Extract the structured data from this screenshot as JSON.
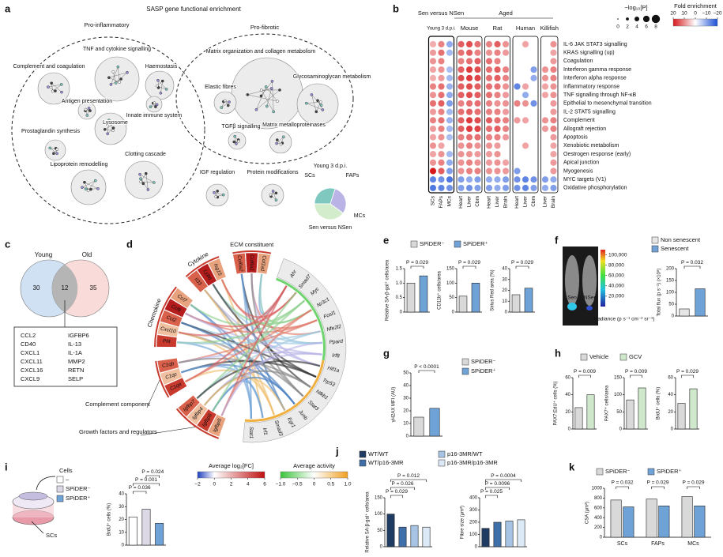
{
  "a": {
    "label": "a",
    "title": "SASP gene functional enrichment",
    "groups": [
      "Pro-inflammatory",
      "Pro-fibrotic"
    ],
    "nodes": [
      "TNF and cytokine signalling",
      "Complement and coagulation",
      "Haemostasis",
      "Antigen presentation",
      "Innate immune system",
      "Prostaglandin synthesis",
      "Lysosome",
      "Lipoprotein remodelling",
      "Clotting cascade",
      "Matrix organization and collagen metabolism",
      "Elastic fibres",
      "Glycosaminoglycan metabolism",
      "TGFβ signalling",
      "Matrix metalloproteinases",
      "IGF regulation",
      "Protein modifications"
    ],
    "pie": {
      "title": "Young 3 d.p.i.",
      "labels": [
        "SCs",
        "FAPs",
        "MCs"
      ],
      "values": [
        30,
        30,
        40
      ],
      "colors": [
        "#7fc8c0",
        "#b9b3e6",
        "#d3eccb"
      ],
      "caption": "Sen versus NSen"
    }
  },
  "b": {
    "label": "b",
    "header_sen": "Sen versus NSen",
    "header_aged": "Aged",
    "groups": [
      "Young 3 d.p.i.",
      "Mouse",
      "Rat",
      "Human",
      "Killifish"
    ],
    "columns": [
      "SCs",
      "FAPs",
      "MCs",
      "Heart",
      "Liver",
      "Cbm",
      "Heart",
      "Liver",
      "Brain",
      "Heart",
      "Liver",
      "Cbm",
      "Liver",
      "Brain"
    ],
    "rows": [
      "IL-6 JAK STAT3 signalling",
      "KRAS signalling (up)",
      "Coagulation",
      "Interferon gamma response",
      "Interferon alpha response",
      "Inflammatory response",
      "TNF signalling through NF-κB",
      "Epithelial to mesenchymal transition",
      "IL-2 STAT5 signalling",
      "Complement",
      "Allograft rejection",
      "Apoptosis",
      "Xenobiotic metabolism",
      "Oestrogen response (early)",
      "Apical junction",
      "Myogenesis",
      "MYC targets (V1)",
      "Oxidative phosphorylation"
    ],
    "fold": [
      [
        3,
        8,
        -6,
        12,
        14,
        10,
        8,
        12,
        6,
        null,
        4,
        null,
        null,
        6
      ],
      [
        5,
        10,
        -4,
        10,
        12,
        8,
        6,
        8,
        5,
        null,
        null,
        null,
        null,
        4
      ],
      [
        6,
        8,
        null,
        8,
        10,
        12,
        10,
        8,
        null,
        null,
        null,
        null,
        null,
        5
      ],
      [
        4,
        6,
        -3,
        12,
        16,
        14,
        10,
        12,
        8,
        null,
        null,
        -8,
        6,
        8
      ],
      [
        3,
        5,
        -4,
        14,
        16,
        15,
        10,
        12,
        8,
        null,
        null,
        -6,
        6,
        8
      ],
      [
        8,
        10,
        -5,
        12,
        14,
        12,
        10,
        10,
        6,
        -12,
        4,
        null,
        4,
        6
      ],
      [
        6,
        10,
        -6,
        12,
        14,
        12,
        10,
        8,
        5,
        null,
        -6,
        null,
        4,
        6
      ],
      [
        10,
        12,
        -8,
        8,
        10,
        10,
        8,
        6,
        6,
        8,
        6,
        -10,
        null,
        5
      ],
      [
        5,
        8,
        -4,
        10,
        12,
        10,
        8,
        8,
        5,
        null,
        null,
        null,
        null,
        5
      ],
      [
        8,
        10,
        -5,
        12,
        16,
        14,
        12,
        10,
        8,
        5,
        4,
        null,
        6,
        8
      ],
      [
        5,
        8,
        -4,
        12,
        16,
        15,
        10,
        12,
        8,
        null,
        null,
        null,
        5,
        8
      ],
      [
        4,
        6,
        -3,
        8,
        10,
        10,
        8,
        8,
        5,
        null,
        null,
        null,
        null,
        5
      ],
      [
        6,
        4,
        null,
        6,
        8,
        6,
        6,
        5,
        null,
        null,
        4,
        null,
        null,
        4
      ],
      [
        4,
        6,
        -4,
        6,
        6,
        5,
        5,
        6,
        null,
        null,
        null,
        null,
        null,
        4
      ],
      [
        6,
        8,
        -6,
        6,
        8,
        6,
        5,
        6,
        4,
        null,
        null,
        null,
        null,
        5
      ],
      [
        20,
        12,
        -8,
        6,
        8,
        8,
        6,
        6,
        5,
        -8,
        null,
        null,
        null,
        5
      ],
      [
        -12,
        -10,
        -14,
        -8,
        -6,
        -8,
        -6,
        -6,
        -8,
        -10,
        -12,
        -10,
        -8,
        -6
      ],
      [
        -14,
        -12,
        -10,
        -8,
        -10,
        -8,
        -8,
        -6,
        -8,
        -10,
        -12,
        -8,
        -6,
        -8
      ]
    ],
    "size_legend": {
      "title": "−log₁₀[P]",
      "ticks": [
        0,
        2,
        4,
        6,
        8
      ]
    },
    "fold_legend": {
      "title": "Fold enrichment",
      "lim": [
        20,
        -20
      ],
      "ticks": [
        20,
        10,
        0,
        {
          "value": -10,
          "label": "−10"
        },
        {
          "value": -20,
          "label": "−20"
        }
      ]
    }
  },
  "c": {
    "label": "c",
    "sets": [
      "Young",
      "Old"
    ],
    "counts": [
      30,
      12,
      35
    ],
    "genes": [
      "CCL2",
      "IGFBP6",
      "CD40",
      "IL-13",
      "CXCL1",
      "IL-1A",
      "CXCL11",
      "MMP2",
      "CXCL16",
      "RETN",
      "CXCL9",
      "SELP"
    ]
  },
  "d": {
    "label": "d",
    "gene_groups": [
      {
        "name": "ECM constituent",
        "genes": [
          "Col1a1",
          "Col6a1",
          "Col6a2"
        ]
      },
      {
        "name": "Cytokine",
        "genes": [
          "Isg15",
          "Ly86",
          "Il33"
        ]
      },
      {
        "name": "Chemokine",
        "genes": [
          "Ccl7",
          "Ccl8",
          "Ccl2",
          "Cxcl10",
          "Pf4"
        ]
      },
      {
        "name": "Complement component",
        "genes": [
          "C1qb",
          "C1qc",
          "C1qa"
        ]
      },
      {
        "name": "Growth factors and regulators",
        "genes": [
          "Igfbp7",
          "Igfbp4",
          "Igfbp6",
          "Igfbp5"
        ]
      }
    ],
    "tfs": [
      "Ahr",
      "Smad7",
      "Myc",
      "Nr3c1",
      "Fosl1",
      "Nfe2l2",
      "Ppard",
      "Irf8",
      "Hif1a",
      "Trp53",
      "Nfkb1",
      "Stat3",
      "Junb",
      "Egr1",
      "Smad3",
      "Irf1",
      "Stat1"
    ],
    "legend_fc": {
      "title": "Average log₂[FC]",
      "lim": [
        -2,
        6
      ],
      "ticks": [
        {
          "value": -2,
          "label": "−2"
        },
        0,
        2,
        4,
        6
      ]
    },
    "legend_activity": {
      "title": "Average activity",
      "lim": [
        -1,
        1
      ],
      "ticks": [
        {
          "value": -1,
          "label": "−1.0"
        },
        {
          "value": -0.5,
          "label": "−0.5"
        },
        0,
        0.5,
        {
          "value": 1,
          "label": "1.0"
        }
      ]
    }
  },
  "e": {
    "label": "e",
    "legend": [
      "SPiDER⁻",
      "SPiDER⁺"
    ],
    "colors": [
      "#d9d9d9",
      "#6fa3d8"
    ],
    "charts": [
      {
        "ylabel": "Relative SA-β-gal⁺ cells/area",
        "ylim": [
          0,
          1.5
        ],
        "yticks": [
          0,
          0.5,
          {
            "value": 1,
            "label": "1.0"
          },
          1.5
        ],
        "values": [
          1,
          1.25
        ],
        "p_values": [
          "P = 0.029"
        ]
      },
      {
        "ylabel": "CD11b⁺ cells/area",
        "ylim": [
          0,
          150
        ],
        "yticks": [
          0,
          50,
          100,
          150
        ],
        "values": [
          55,
          100
        ],
        "p_values": [
          "P = 0.029"
        ]
      },
      {
        "ylabel": "Sirius Red area (%)",
        "ylim": [
          0,
          40
        ],
        "yticks": [
          0,
          10,
          20,
          30,
          40
        ],
        "values": [
          16,
          22
        ],
        "p_values": [
          "P = 0.029"
        ]
      }
    ]
  },
  "f": {
    "label": "f",
    "image_labels": [
      "Sen",
      "NSen"
    ],
    "colorbar_title": "Radiance (p s⁻¹ cm⁻² sr⁻¹)",
    "colorbar_lim": [
      0,
      110000
    ],
    "colorbar_ticks": [
      {
        "value": 100000,
        "label": "100,000"
      },
      {
        "value": 80000,
        "label": "80,000"
      },
      {
        "value": 60000,
        "label": "60,000"
      },
      {
        "value": 40000,
        "label": "40,000"
      },
      {
        "value": 20000,
        "label": "20,000"
      }
    ],
    "legend": [
      "Non senescent",
      "Senescent"
    ],
    "colors": [
      "#e6e6e6",
      "#6fa3d8"
    ],
    "chart": {
      "ylabel": "Total flux (p s⁻¹) (×10⁸)",
      "ylim": [
        0,
        200
      ],
      "yticks": [
        0,
        50,
        100,
        150,
        200
      ],
      "values": [
        30,
        115
      ],
      "p_values": [
        "P = 0.032"
      ]
    }
  },
  "g": {
    "label": "g",
    "legend": [
      "SPiDER⁻",
      "SPiDER⁺"
    ],
    "colors": [
      "#d9d9d9",
      "#6fa3d8"
    ],
    "chart": {
      "ylabel": "γH2AX MFI (AU)",
      "ylim": [
        0,
        50
      ],
      "yticks": [
        0,
        10,
        20,
        30,
        40,
        50
      ],
      "values": [
        15,
        22
      ],
      "p_values": [
        "P < 0.0001"
      ]
    }
  },
  "h": {
    "label": "h",
    "legend": [
      "Vehicle",
      "GCV"
    ],
    "colors": [
      "#d9d9d9",
      "#cfe8cc"
    ],
    "charts": [
      {
        "ylabel": "PAX7:EdU⁺ cells (%)",
        "ylim": [
          0,
          60
        ],
        "yticks": [
          0,
          20,
          40,
          60
        ],
        "values": [
          25,
          40
        ],
        "p_values": [
          "P = 0.009"
        ]
      },
      {
        "ylabel": "PAX7⁺ cells/area",
        "ylim": [
          0,
          150
        ],
        "yticks": [
          0,
          50,
          100,
          150
        ],
        "values": [
          85,
          120
        ],
        "p_values": [
          "P = 0.009"
        ]
      },
      {
        "ylabel": "BrdU⁺ cells (%)",
        "ylim": [
          0,
          60
        ],
        "yticks": [
          0,
          20,
          40,
          60
        ],
        "values": [
          30,
          47
        ],
        "p_values": [
          "P = 0.029"
        ]
      }
    ]
  },
  "i": {
    "label": "i",
    "cells_title": "Cells",
    "legend": [
      "–",
      "SPiDER⁻",
      "SPiDER⁺"
    ],
    "dish_label": "SCs",
    "colors": [
      "#ffffff",
      "#dcd8e6",
      "#6fa3d8"
    ],
    "chart": {
      "ylabel": "BrdU⁺ cells (%)",
      "ylim": [
        0,
        40
      ],
      "yticks": [
        0,
        10,
        20,
        30,
        40
      ],
      "values": [
        22,
        28,
        17
      ],
      "p_values": [
        "P = 0.024",
        "P = 0.001",
        "P = 0.036"
      ]
    }
  },
  "j": {
    "label": "j",
    "legend": [
      "WT/WT",
      "WT/p16-3MR",
      "p16-3MR/WT",
      "p16-3MR/p16-3MR"
    ],
    "colors": [
      "#1f3b63",
      "#3f6fa8",
      "#a7c4e5",
      "#dce9f6"
    ],
    "charts": [
      {
        "ylabel": "Relative SA-β-gal⁺ cells/area",
        "ylim": [
          0,
          150
        ],
        "yticks": [
          0,
          50,
          100,
          150
        ],
        "values": [
          100,
          60,
          65,
          60
        ],
        "p_values": [
          "P = 0.012",
          "P = 0.026",
          "P = 0.029"
        ]
      },
      {
        "ylabel": "Fibre size (μm²)",
        "ylim": [
          0,
          400
        ],
        "yticks": [
          0,
          100,
          200,
          300,
          400
        ],
        "values": [
          150,
          200,
          210,
          220
        ],
        "p_values": [
          "P = 0.0004",
          "P = 0.0096",
          "P = 0.025"
        ]
      }
    ]
  },
  "k": {
    "label": "k",
    "legend": [
      "SPiDER⁻",
      "SPiDER⁺"
    ],
    "colors": [
      "#d9d9d9",
      "#6fa3d8"
    ],
    "chart": {
      "ylabel": "CSA (μm²)",
      "ylim": [
        0,
        1000
      ],
      "yticks": [
        0,
        200,
        400,
        600,
        800,
        1000
      ],
      "categories": [
        "SCs",
        "FAPs",
        "MCs"
      ],
      "values": [
        [
          760,
          620
        ],
        [
          780,
          640
        ],
        [
          830,
          640
        ]
      ],
      "p_values": [
        "P = 0.032",
        "P = 0.029",
        "P = 0.029"
      ]
    }
  }
}
